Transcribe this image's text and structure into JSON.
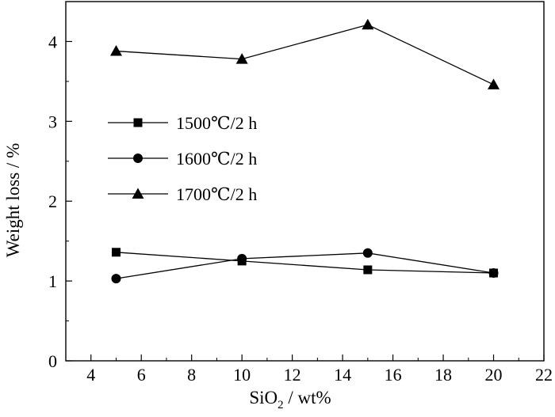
{
  "chart_data": {
    "type": "line",
    "x": [
      5,
      10,
      15,
      20
    ],
    "series": [
      {
        "name": "1500℃/2 h",
        "marker": "square",
        "values": [
          1.36,
          1.25,
          1.14,
          1.1
        ]
      },
      {
        "name": "1600℃/2 h",
        "marker": "circle",
        "values": [
          1.03,
          1.28,
          1.35,
          1.1
        ]
      },
      {
        "name": "1700℃/2 h",
        "marker": "triangle",
        "values": [
          3.88,
          3.78,
          4.21,
          3.46
        ]
      }
    ],
    "xlabel": {
      "main": "SiO",
      "sub": "2",
      "rest": " / wt%"
    },
    "ylabel": "Weight loss / %",
    "xlim": [
      3,
      22
    ],
    "ylim": [
      0,
      4.5
    ],
    "xticks": [
      4,
      6,
      8,
      10,
      12,
      14,
      16,
      18,
      20,
      22
    ],
    "yticks": [
      0,
      1,
      2,
      3,
      4
    ],
    "grid": false,
    "legend_position": "center-left",
    "line_color": "#000000"
  }
}
